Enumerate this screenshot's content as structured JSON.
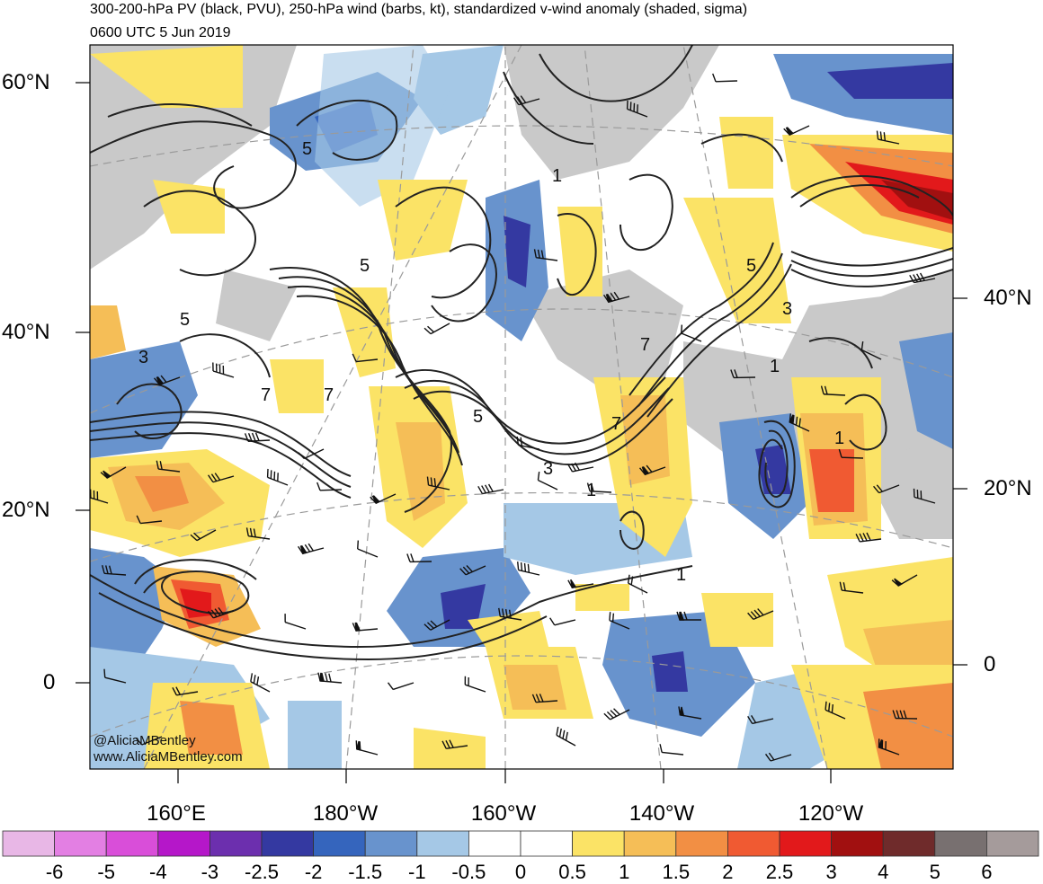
{
  "title": {
    "line1": "300-200-hPa PV (black, PVU), 250-hPa wind (barbs, kt), standardized v-wind anomaly (shaded, sigma)",
    "line2": "0600 UTC 5 Jun 2019"
  },
  "lat_labels_left": [
    "60°N",
    "40°N",
    "20°N",
    "0"
  ],
  "lat_labels_right": [
    "40°N",
    "20°N",
    "0"
  ],
  "lon_labels": [
    "160°E",
    "180°W",
    "160°W",
    "140°W",
    "120°W"
  ],
  "credit": {
    "twitter": "@AliciaMBentley",
    "website": "www.AliciaMBentley.com"
  },
  "contour_labels": [
    "5",
    "5",
    "5",
    "3",
    "7",
    "7",
    "5",
    "3",
    "1",
    "7",
    "1",
    "5",
    "3",
    "1",
    "7",
    "1",
    "1"
  ],
  "colorbar": {
    "labels": [
      "-6",
      "-5",
      "-4",
      "-3",
      "-2.5",
      "-2",
      "-1.5",
      "-1",
      "-0.5",
      "0",
      "0.5",
      "1",
      "1.5",
      "2",
      "2.5",
      "3",
      "4",
      "5",
      "6"
    ],
    "colors": [
      "#e8b7e6",
      "#e37fe3",
      "#d94ed9",
      "#b517c9",
      "#6c2fae",
      "#3439a1",
      "#3565bd",
      "#6893cd",
      "#a5c8e6",
      "#ffffff",
      "#ffffff",
      "#fbe366",
      "#f5be57",
      "#f28f44",
      "#f05a32",
      "#e2191b",
      "#a11010",
      "#6f2b2b",
      "#787070",
      "#a59b9b"
    ]
  },
  "colors": {
    "land_gray": "#c8c8c8",
    "contour": "#222222"
  }
}
